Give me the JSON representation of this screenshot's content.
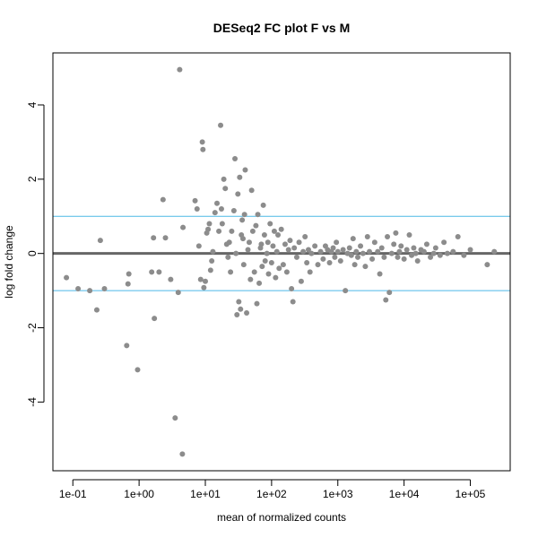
{
  "chart_data": {
    "type": "scatter",
    "title": "DESeq2 FC plot F vs M",
    "xlabel": "mean of normalized counts",
    "ylabel": "log fold change",
    "x_scale": "log10",
    "xlim": [
      0.05,
      400000
    ],
    "ylim": [
      -5.85,
      5.4
    ],
    "x_ticks": [
      {
        "value": 0.1,
        "label": "1e-01"
      },
      {
        "value": 1,
        "label": "1e+00"
      },
      {
        "value": 10,
        "label": "1e+01"
      },
      {
        "value": 100,
        "label": "1e+02"
      },
      {
        "value": 1000,
        "label": "1e+03"
      },
      {
        "value": 10000,
        "label": "1e+04"
      },
      {
        "value": 100000,
        "label": "1e+05"
      }
    ],
    "y_ticks": [
      {
        "value": -4,
        "label": "-4"
      },
      {
        "value": -2,
        "label": "-2"
      },
      {
        "value": 0,
        "label": "0"
      },
      {
        "value": 2,
        "label": "2"
      },
      {
        "value": 4,
        "label": "4"
      }
    ],
    "reference_lines": [
      {
        "y": 0,
        "color": "#666666",
        "style": "thick"
      },
      {
        "y": 1,
        "color": "#4db8e6",
        "style": "thin"
      },
      {
        "y": -1,
        "color": "#4db8e6",
        "style": "thin"
      }
    ],
    "point_color": "#8c8c8c",
    "points": [
      [
        0.08,
        -0.65
      ],
      [
        0.12,
        -0.95
      ],
      [
        0.18,
        -1.0
      ],
      [
        0.23,
        -1.52
      ],
      [
        0.26,
        0.35
      ],
      [
        0.3,
        -0.95
      ],
      [
        0.65,
        -2.48
      ],
      [
        0.68,
        -0.82
      ],
      [
        0.7,
        -0.55
      ],
      [
        0.95,
        -3.13
      ],
      [
        1.55,
        -0.5
      ],
      [
        1.65,
        0.42
      ],
      [
        1.7,
        -1.75
      ],
      [
        2.0,
        -0.5
      ],
      [
        2.3,
        1.45
      ],
      [
        2.5,
        0.42
      ],
      [
        3.0,
        -0.7
      ],
      [
        3.5,
        -4.43
      ],
      [
        3.9,
        -1.05
      ],
      [
        4.1,
        4.95
      ],
      [
        4.5,
        -5.4
      ],
      [
        4.6,
        0.7
      ],
      [
        7.0,
        1.42
      ],
      [
        7.5,
        1.2
      ],
      [
        8.0,
        0.2
      ],
      [
        8.5,
        -0.7
      ],
      [
        9.0,
        3.0
      ],
      [
        9.2,
        2.8
      ],
      [
        9.5,
        -0.92
      ],
      [
        10.0,
        -0.75
      ],
      [
        10.5,
        0.55
      ],
      [
        11.0,
        0.65
      ],
      [
        11.5,
        0.8
      ],
      [
        12.0,
        -0.45
      ],
      [
        12.5,
        -0.2
      ],
      [
        13.0,
        0.05
      ],
      [
        14.0,
        1.1
      ],
      [
        15.0,
        1.35
      ],
      [
        16.0,
        0.6
      ],
      [
        17.0,
        3.45
      ],
      [
        17.5,
        1.2
      ],
      [
        18.0,
        0.8
      ],
      [
        19.0,
        2.0
      ],
      [
        20.0,
        1.75
      ],
      [
        21.0,
        0.25
      ],
      [
        22.0,
        -0.1
      ],
      [
        23.0,
        0.3
      ],
      [
        24.0,
        -0.5
      ],
      [
        25.0,
        0.6
      ],
      [
        27.0,
        1.15
      ],
      [
        28.0,
        2.55
      ],
      [
        29.0,
        0.0
      ],
      [
        30.0,
        -1.65
      ],
      [
        31.0,
        1.6
      ],
      [
        32.0,
        -1.3
      ],
      [
        33.0,
        2.05
      ],
      [
        34.0,
        -1.5
      ],
      [
        35.0,
        0.5
      ],
      [
        36.0,
        0.9
      ],
      [
        37.0,
        0.4
      ],
      [
        38.0,
        -0.3
      ],
      [
        39.0,
        1.05
      ],
      [
        40.0,
        2.25
      ],
      [
        42.0,
        -1.6
      ],
      [
        44.0,
        0.1
      ],
      [
        46.0,
        0.3
      ],
      [
        48.0,
        -0.7
      ],
      [
        50.0,
        1.7
      ],
      [
        52.0,
        0.6
      ],
      [
        55.0,
        -0.5
      ],
      [
        58.0,
        0.75
      ],
      [
        60.0,
        -1.35
      ],
      [
        62.0,
        1.05
      ],
      [
        65.0,
        -0.8
      ],
      [
        68.0,
        0.15
      ],
      [
        70.0,
        0.25
      ],
      [
        72.0,
        -0.35
      ],
      [
        75.0,
        1.3
      ],
      [
        78.0,
        0.5
      ],
      [
        80.0,
        -0.2
      ],
      [
        85.0,
        0.0
      ],
      [
        88.0,
        0.3
      ],
      [
        90.0,
        -0.55
      ],
      [
        95.0,
        0.8
      ],
      [
        100.0,
        -0.25
      ],
      [
        105.0,
        0.2
      ],
      [
        110.0,
        0.6
      ],
      [
        115.0,
        -0.65
      ],
      [
        120.0,
        0.05
      ],
      [
        125.0,
        0.5
      ],
      [
        130.0,
        -0.4
      ],
      [
        140.0,
        0.65
      ],
      [
        150.0,
        -0.3
      ],
      [
        160.0,
        0.25
      ],
      [
        170.0,
        -0.5
      ],
      [
        180.0,
        0.1
      ],
      [
        190.0,
        0.35
      ],
      [
        200.0,
        -0.95
      ],
      [
        210.0,
        -1.3
      ],
      [
        220.0,
        0.15
      ],
      [
        240.0,
        -0.1
      ],
      [
        260.0,
        0.3
      ],
      [
        280.0,
        -0.75
      ],
      [
        300.0,
        0.05
      ],
      [
        320.0,
        0.45
      ],
      [
        340.0,
        -0.25
      ],
      [
        360.0,
        0.1
      ],
      [
        380.0,
        -0.5
      ],
      [
        400.0,
        0.0
      ],
      [
        450.0,
        0.2
      ],
      [
        500.0,
        -0.3
      ],
      [
        550.0,
        0.05
      ],
      [
        600.0,
        -0.15
      ],
      [
        650.0,
        0.2
      ],
      [
        700.0,
        0.1
      ],
      [
        750.0,
        -0.25
      ],
      [
        800.0,
        0.05
      ],
      [
        850.0,
        0.15
      ],
      [
        900.0,
        -0.1
      ],
      [
        950.0,
        0.3
      ],
      [
        1000.0,
        0.05
      ],
      [
        1100.0,
        -0.2
      ],
      [
        1200.0,
        0.1
      ],
      [
        1300.0,
        -1.0
      ],
      [
        1400.0,
        0.0
      ],
      [
        1500.0,
        0.15
      ],
      [
        1600.0,
        -0.05
      ],
      [
        1700.0,
        0.4
      ],
      [
        1800.0,
        -0.3
      ],
      [
        1900.0,
        0.05
      ],
      [
        2000.0,
        -0.1
      ],
      [
        2200.0,
        0.2
      ],
      [
        2400.0,
        0.0
      ],
      [
        2600.0,
        -0.35
      ],
      [
        2800.0,
        0.45
      ],
      [
        3000.0,
        0.05
      ],
      [
        3300.0,
        -0.15
      ],
      [
        3600.0,
        0.3
      ],
      [
        4000.0,
        0.05
      ],
      [
        4300.0,
        -0.55
      ],
      [
        4600.0,
        0.15
      ],
      [
        5000.0,
        -0.1
      ],
      [
        5300.0,
        -1.25
      ],
      [
        5600.0,
        0.45
      ],
      [
        6000.0,
        -1.05
      ],
      [
        6500.0,
        0.0
      ],
      [
        7000.0,
        0.25
      ],
      [
        7500.0,
        0.55
      ],
      [
        8000.0,
        -0.1
      ],
      [
        8500.0,
        0.05
      ],
      [
        9000.0,
        0.2
      ],
      [
        10000.0,
        -0.15
      ],
      [
        11000.0,
        0.1
      ],
      [
        12000.0,
        0.5
      ],
      [
        13000.0,
        -0.05
      ],
      [
        14000.0,
        0.15
      ],
      [
        15000.0,
        0.0
      ],
      [
        16000.0,
        -0.2
      ],
      [
        18000.0,
        0.1
      ],
      [
        20000.0,
        0.05
      ],
      [
        22000.0,
        0.25
      ],
      [
        25000.0,
        -0.1
      ],
      [
        28000.0,
        0.0
      ],
      [
        30000.0,
        0.15
      ],
      [
        35000.0,
        -0.05
      ],
      [
        40000.0,
        0.3
      ],
      [
        45000.0,
        0.0
      ],
      [
        55000.0,
        0.05
      ],
      [
        65000.0,
        0.45
      ],
      [
        80000.0,
        -0.05
      ],
      [
        100000.0,
        0.1
      ],
      [
        180000.0,
        -0.3
      ],
      [
        230000.0,
        0.05
      ]
    ]
  }
}
